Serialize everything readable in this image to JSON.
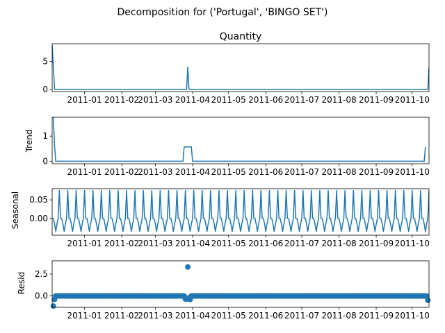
{
  "suptitle": "Decomposition for ('Portugal', 'BINGO SET')",
  "colors": {
    "line": "#1f77b4",
    "axis": "#000000"
  },
  "chart_data": [
    {
      "type": "line",
      "title": "Quantity",
      "ylabel": "",
      "x_range": [
        "2010-12-05",
        "2011-10-15"
      ],
      "x_ticks": [
        "2011-01",
        "2011-02",
        "2011-03",
        "2011-04",
        "2011-05",
        "2011-06",
        "2011-07",
        "2011-08",
        "2011-09",
        "2011-10"
      ],
      "ylim": [
        -0.4,
        8.2
      ],
      "y_ticks": [
        {
          "v": 0,
          "label": "0"
        },
        {
          "v": 5,
          "label": "5"
        }
      ],
      "points": [
        [
          "2010-12-05",
          8
        ],
        [
          "2010-12-07",
          0
        ],
        [
          "2011-03-27",
          0
        ],
        [
          "2011-03-28",
          4
        ],
        [
          "2011-03-29",
          0
        ],
        [
          "2011-10-14",
          0
        ],
        [
          "2011-10-15",
          4
        ]
      ]
    },
    {
      "type": "line",
      "title": "",
      "ylabel": "Trend",
      "x_range": [
        "2010-12-05",
        "2011-10-15"
      ],
      "x_ticks": [
        "2011-01",
        "2011-02",
        "2011-03",
        "2011-04",
        "2011-05",
        "2011-06",
        "2011-07",
        "2011-08",
        "2011-09",
        "2011-10"
      ],
      "ylim": [
        -0.1,
        1.75
      ],
      "y_ticks": [
        {
          "v": 0,
          "label": "0"
        },
        {
          "v": 1,
          "label": "1"
        }
      ],
      "points": [
        [
          "2010-12-06",
          1.75
        ],
        [
          "2010-12-07",
          0.6
        ],
        [
          "2010-12-08",
          0
        ],
        [
          "2011-03-24",
          0
        ],
        [
          "2011-03-25",
          0.57
        ],
        [
          "2011-03-31",
          0.57
        ],
        [
          "2011-04-01",
          0
        ],
        [
          "2011-10-11",
          0
        ],
        [
          "2011-10-12",
          0.57
        ]
      ]
    },
    {
      "type": "line",
      "title": "",
      "ylabel": "Seasonal",
      "x_range": [
        "2010-12-05",
        "2011-10-15"
      ],
      "x_ticks": [
        "2011-01",
        "2011-02",
        "2011-03",
        "2011-04",
        "2011-05",
        "2011-06",
        "2011-07",
        "2011-08",
        "2011-09",
        "2011-10"
      ],
      "ylim": [
        -0.045,
        0.08
      ],
      "y_ticks": [
        {
          "v": 0.0,
          "label": "0.00"
        },
        {
          "v": 0.05,
          "label": "0.05"
        }
      ],
      "seasonal_start": "2010-12-05",
      "seasonal_period_days": 7,
      "seasonal_pattern": [
        0.0,
        0.0,
        -0.015,
        -0.035,
        -0.015,
        0.0,
        0.075
      ]
    },
    {
      "type": "scatter",
      "title": "",
      "ylabel": "Resid",
      "x_range": [
        "2010-12-05",
        "2011-10-15"
      ],
      "x_ticks": [
        "2011-01",
        "2011-02",
        "2011-03",
        "2011-04",
        "2011-05",
        "2011-06",
        "2011-07",
        "2011-08",
        "2011-09",
        "2011-10"
      ],
      "ylim": [
        -1.3,
        4.0
      ],
      "y_ticks": [
        {
          "v": 0.0,
          "label": "0.0"
        },
        {
          "v": 2.5,
          "label": "2.5"
        }
      ],
      "zero_line": true,
      "resid_start": "2010-12-06",
      "resid_end": "2011-10-14",
      "outliers": [
        [
          "2010-12-06",
          -1.15
        ],
        [
          "2010-12-07",
          -0.4
        ],
        [
          "2011-03-26",
          -0.35
        ],
        [
          "2011-03-27",
          -0.35
        ],
        [
          "2011-03-28",
          3.3
        ],
        [
          "2011-03-29",
          -0.35
        ],
        [
          "2011-03-30",
          -0.4
        ],
        [
          "2011-10-14",
          -0.5
        ]
      ]
    }
  ]
}
